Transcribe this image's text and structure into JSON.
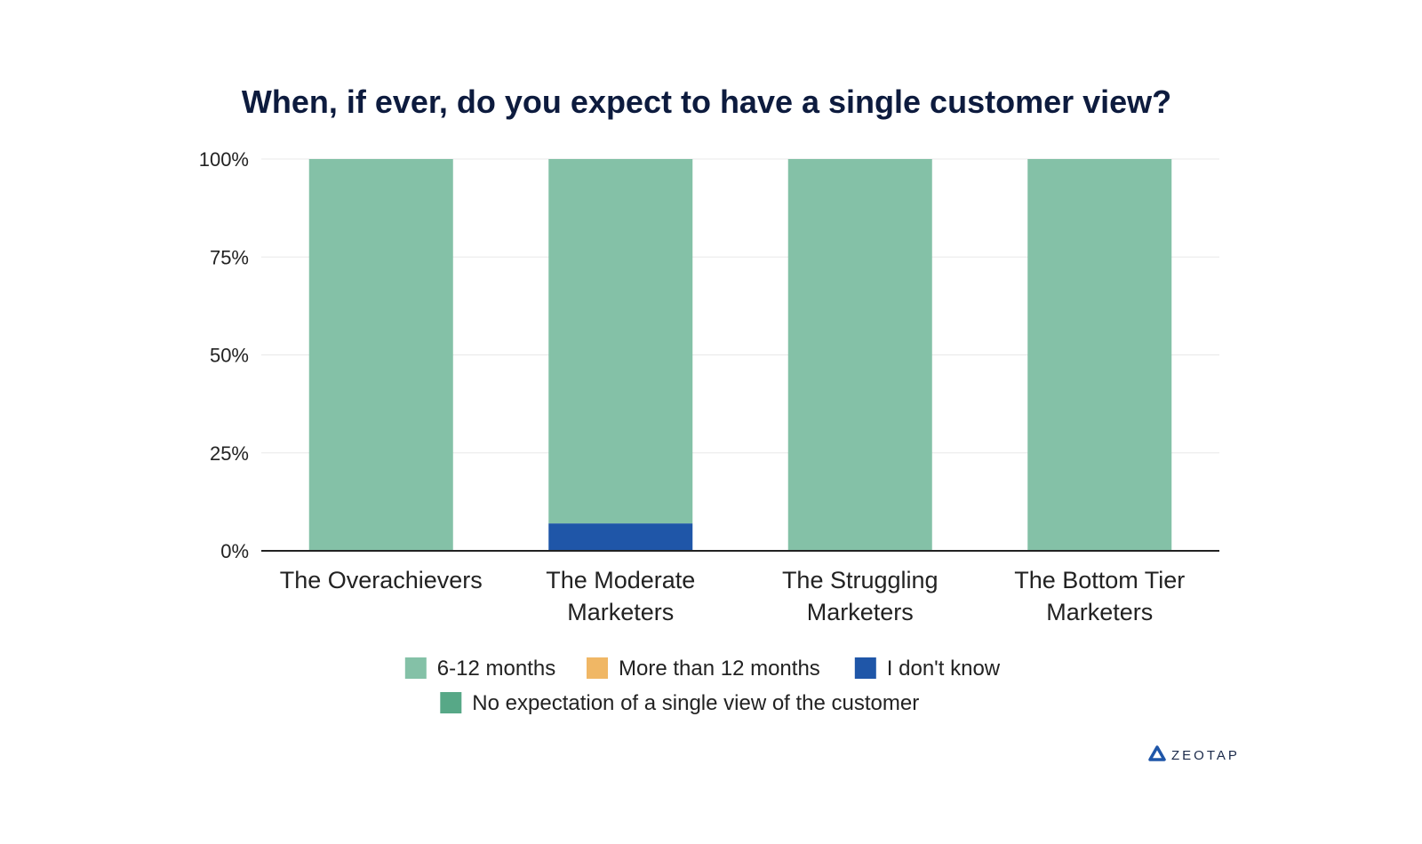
{
  "chart_data": {
    "type": "bar",
    "stacked": true,
    "title": "When, if ever, do you expect to have a single customer view?",
    "xlabel": "",
    "ylabel": "",
    "ylim": [
      0,
      100
    ],
    "yticks": [
      0,
      25,
      50,
      75,
      100
    ],
    "ytick_labels": [
      "0%",
      "25%",
      "50%",
      "75%",
      "100%"
    ],
    "categories": [
      [
        "The Overachievers"
      ],
      [
        "The Moderate",
        "Marketers"
      ],
      [
        "The Struggling",
        "Marketers"
      ],
      [
        "The Bottom Tier",
        "Marketers"
      ]
    ],
    "series": [
      {
        "name": "I don't know",
        "color": "#1f56a8",
        "values": [
          0,
          7,
          0,
          0
        ]
      },
      {
        "name": "More than 12 months",
        "color": "#f0b765",
        "values": [
          0,
          0,
          0,
          0
        ]
      },
      {
        "name": "No expectation of a single view of the customer",
        "color": "#57a887",
        "values": [
          0,
          0,
          0,
          0
        ]
      },
      {
        "name": "6-12 months",
        "color": "#84c1a7",
        "values": [
          100,
          93,
          100,
          100
        ]
      }
    ],
    "legend": [
      {
        "label": "6-12 months",
        "color": "#84c1a7"
      },
      {
        "label": "More than 12 months",
        "color": "#f0b765"
      },
      {
        "label": "I don't know",
        "color": "#1f56a8"
      },
      {
        "label": "No expectation of a single view of the customer",
        "color": "#57a887"
      }
    ],
    "legend_position": "bottom",
    "grid": true
  },
  "brand": {
    "name": "ZEOTAP",
    "icon": "zeotap-logo-icon",
    "color": "#1f56a8"
  }
}
